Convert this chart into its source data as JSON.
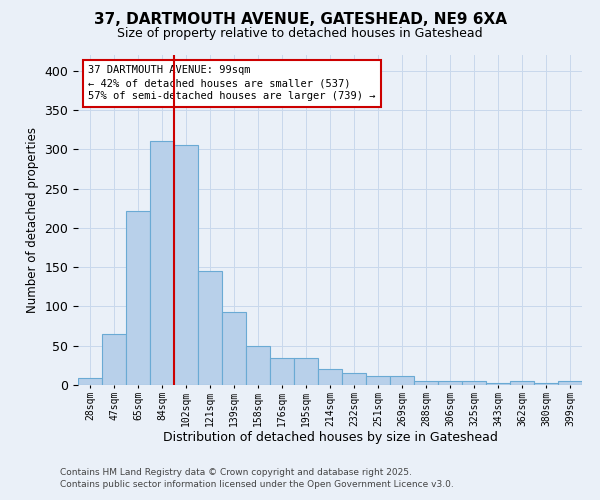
{
  "title1": "37, DARTMOUTH AVENUE, GATESHEAD, NE9 6XA",
  "title2": "Size of property relative to detached houses in Gateshead",
  "xlabel": "Distribution of detached houses by size in Gateshead",
  "ylabel": "Number of detached properties",
  "categories": [
    "28sqm",
    "47sqm",
    "65sqm",
    "84sqm",
    "102sqm",
    "121sqm",
    "139sqm",
    "158sqm",
    "176sqm",
    "195sqm",
    "214sqm",
    "232sqm",
    "251sqm",
    "269sqm",
    "288sqm",
    "306sqm",
    "325sqm",
    "343sqm",
    "362sqm",
    "380sqm",
    "399sqm"
  ],
  "values": [
    9,
    65,
    221,
    310,
    305,
    145,
    93,
    50,
    34,
    34,
    21,
    15,
    11,
    11,
    5,
    5,
    5,
    3,
    5,
    3,
    5
  ],
  "bar_color": "#b8d0ea",
  "bar_edge_color": "#6aaad4",
  "vline_x": 4,
  "vline_color": "#cc0000",
  "annotation_text": "37 DARTMOUTH AVENUE: 99sqm\n← 42% of detached houses are smaller (537)\n57% of semi-detached houses are larger (739) →",
  "annotation_box_color": "#ffffff",
  "annotation_box_edge_color": "#cc0000",
  "grid_color": "#c8d8ec",
  "background_color": "#eaf0f8",
  "footer1": "Contains HM Land Registry data © Crown copyright and database right 2025.",
  "footer2": "Contains public sector information licensed under the Open Government Licence v3.0.",
  "ylim": [
    0,
    420
  ],
  "yticks": [
    0,
    50,
    100,
    150,
    200,
    250,
    300,
    350,
    400
  ]
}
